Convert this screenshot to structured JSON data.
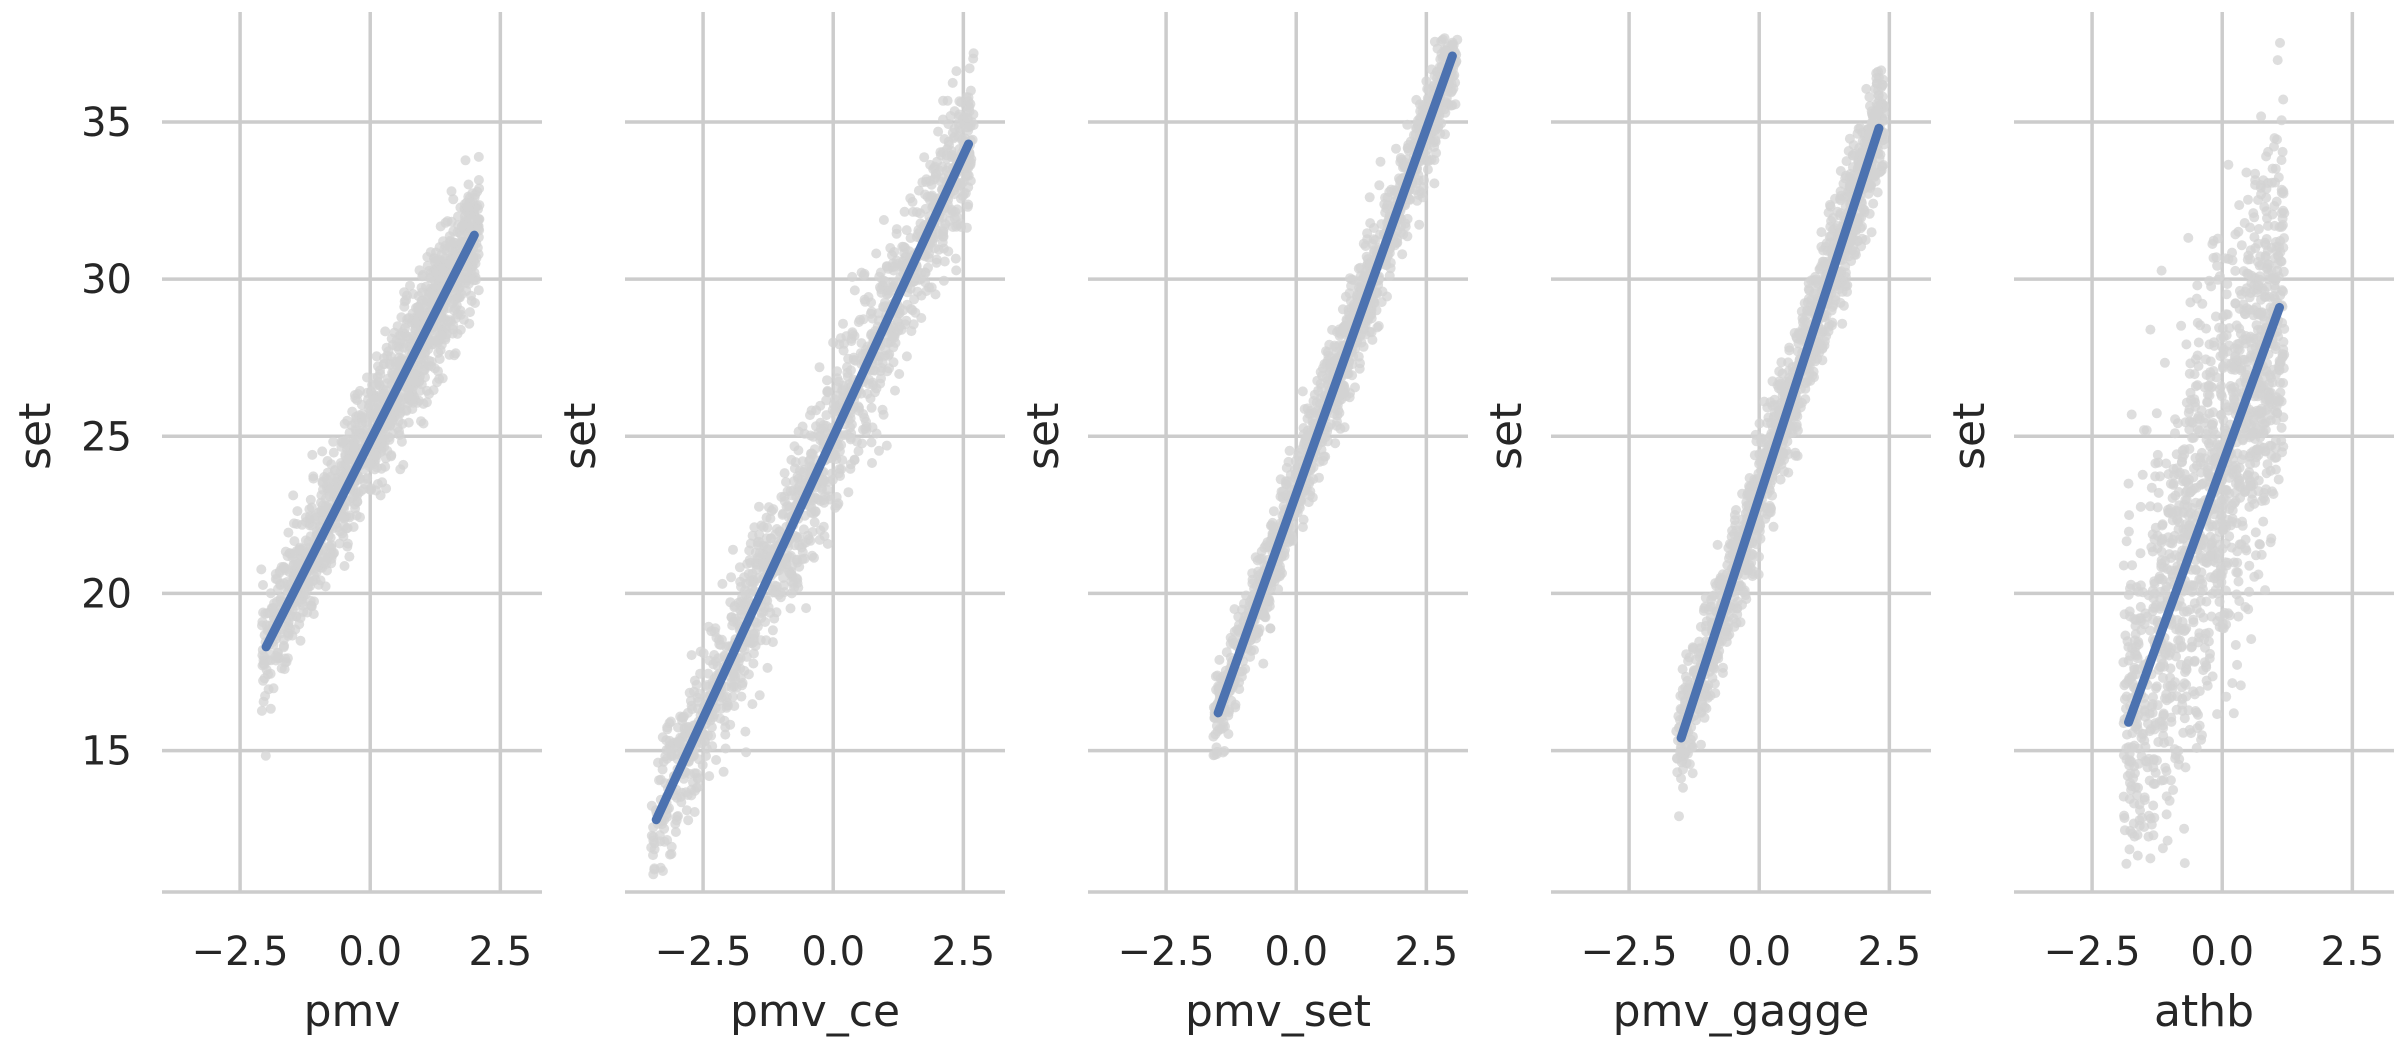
{
  "chart_data": {
    "type": "scatter",
    "shared_y_ticks": [
      15,
      20,
      25,
      30,
      35
    ],
    "colors": {
      "scatter": "#d3d3d3",
      "regression": "#4c72b0",
      "grid": "#cccccc",
      "text": "#262626"
    },
    "grid": true,
    "panels": [
      {
        "xlabel": "pmv",
        "ylabel": "set",
        "xlim": [
          -4.0,
          3.3
        ],
        "ylim": [
          10.5,
          38.5
        ],
        "xticks": [
          "−2.5",
          "0.0",
          "2.5"
        ],
        "xtick_values": [
          -2.5,
          0.0,
          2.5
        ],
        "regression": {
          "x": [
            -2.0,
            2.0
          ],
          "y": [
            18.3,
            31.4
          ]
        },
        "cloud": {
          "x_min": -2.1,
          "x_max": 2.1,
          "slope": 3.28,
          "intercept": 24.9,
          "spread": 1.0
        }
      },
      {
        "xlabel": "pmv_ce",
        "ylabel": "set",
        "xlim": [
          -4.0,
          3.3
        ],
        "ylim": [
          10.5,
          38.5
        ],
        "xticks": [
          "−2.5",
          "0.0",
          "2.5"
        ],
        "xtick_values": [
          -2.5,
          0.0,
          2.5
        ],
        "regression": {
          "x": [
            -3.4,
            2.6
          ],
          "y": [
            12.8,
            34.3
          ]
        },
        "cloud": {
          "x_min": -3.5,
          "x_max": 2.7,
          "slope": 3.58,
          "intercept": 25.0,
          "spread": 1.2
        }
      },
      {
        "xlabel": "pmv_set",
        "ylabel": "set",
        "xlim": [
          -4.0,
          3.3
        ],
        "ylim": [
          10.5,
          38.5
        ],
        "xticks": [
          "−2.5",
          "0.0",
          "2.5"
        ],
        "xtick_values": [
          -2.5,
          0.0,
          2.5
        ],
        "regression": {
          "x": [
            -1.5,
            3.0
          ],
          "y": [
            16.2,
            37.1
          ]
        },
        "cloud": {
          "x_min": -1.6,
          "x_max": 3.1,
          "slope": 4.64,
          "intercept": 23.2,
          "spread": 0.8
        }
      },
      {
        "xlabel": "pmv_gagge",
        "ylabel": "set",
        "xlim": [
          -4.0,
          3.3
        ],
        "ylim": [
          10.5,
          38.5
        ],
        "xticks": [
          "−2.5",
          "0.0",
          "2.5"
        ],
        "xtick_values": [
          -2.5,
          0.0,
          2.5
        ],
        "regression": {
          "x": [
            -1.5,
            2.3
          ],
          "y": [
            15.4,
            34.8
          ]
        },
        "cloud": {
          "x_min": -1.6,
          "x_max": 2.4,
          "slope": 5.1,
          "intercept": 23.1,
          "spread": 0.9
        }
      },
      {
        "xlabel": "athb",
        "ylabel": "set",
        "xlim": [
          -4.0,
          3.3
        ],
        "ylim": [
          10.5,
          38.5
        ],
        "xticks": [
          "−2.5",
          "0.0",
          "2.5"
        ],
        "xtick_values": [
          -2.5,
          0.0,
          2.5
        ],
        "regression": {
          "x": [
            -1.8,
            1.1
          ],
          "y": [
            15.9,
            29.1
          ]
        },
        "cloud": {
          "x_min": -1.9,
          "x_max": 1.2,
          "slope": 4.55,
          "intercept": 24.1,
          "spread": 3.2
        }
      }
    ]
  }
}
